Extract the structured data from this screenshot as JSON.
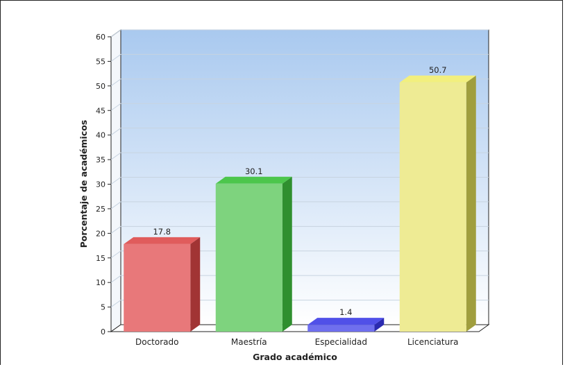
{
  "chart_data": {
    "type": "bar",
    "categories": [
      "Doctorado",
      "Maestría",
      "Especialidad",
      "Licenciatura"
    ],
    "values": [
      17.8,
      30.1,
      1.4,
      50.7
    ],
    "data_labels": [
      "17.8",
      "30.1",
      "1.4",
      "50.7"
    ],
    "title": "",
    "xlabel": "Grado académico",
    "ylabel": "Porcentaje de académicos",
    "ylim": [
      0,
      60
    ],
    "yticks": [
      0,
      5,
      10,
      15,
      20,
      25,
      30,
      35,
      40,
      45,
      50,
      55,
      60
    ],
    "grid": true,
    "style": "3d",
    "colors": {
      "front": [
        "#e8787a",
        "#7ed37e",
        "#6f6fee",
        "#eeeb94"
      ],
      "top": [
        "#e05c5c",
        "#4cc64c",
        "#5050e8",
        "#f2ef7e"
      ],
      "side": [
        "#a13434",
        "#2f8f2f",
        "#2b2bb0",
        "#a09e3e"
      ],
      "wall_top": "#a9c9ef",
      "wall_bottom": "#ffffff",
      "grid": "#c7d3e0"
    }
  }
}
